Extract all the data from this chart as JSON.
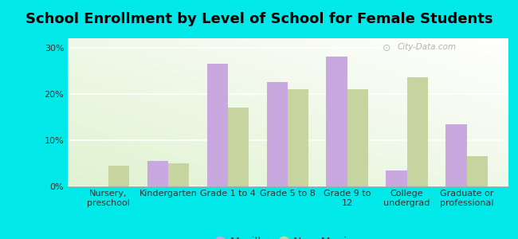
{
  "title": "School Enrollment by Level of School for Female Students",
  "categories": [
    "Nursery,\npreschool",
    "Kindergarten",
    "Grade 1 to 4",
    "Grade 5 to 8",
    "Grade 9 to\n12",
    "College\nundergrad",
    "Graduate or\nprofessional"
  ],
  "mesilla": [
    0.0,
    5.5,
    26.5,
    22.5,
    28.0,
    3.5,
    13.5
  ],
  "new_mexico": [
    4.5,
    5.0,
    17.0,
    21.0,
    21.0,
    23.5,
    6.5
  ],
  "mesilla_color": "#c9a8e0",
  "nm_color": "#c8d4a0",
  "background_color": "#00e8e8",
  "ylabel_ticks": [
    0,
    10,
    20,
    30
  ],
  "ylim": [
    0,
    32
  ],
  "bar_width": 0.35,
  "title_fontsize": 13,
  "legend_fontsize": 10,
  "tick_fontsize": 8,
  "watermark": "City-Data.com"
}
